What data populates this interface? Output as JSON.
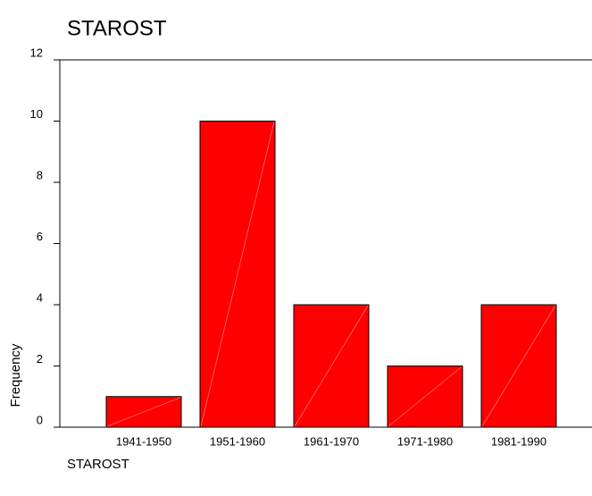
{
  "chart_data": {
    "type": "bar",
    "title": "STAROST",
    "x_label": "STAROST",
    "y_label": "Frequency",
    "categories": [
      "1941-1950",
      "1951-1960",
      "1961-1970",
      "1971-1980",
      "1981-1990"
    ],
    "values": [
      1,
      10,
      4,
      2,
      4
    ],
    "color": "#ff0000",
    "ylim": [
      0,
      12
    ],
    "yticks": [
      0,
      2,
      4,
      6,
      8,
      10,
      12
    ]
  }
}
